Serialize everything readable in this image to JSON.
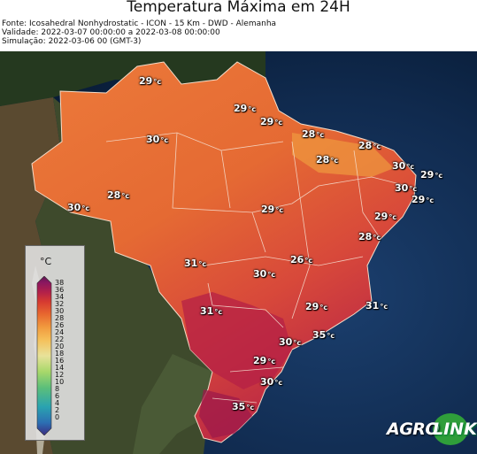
{
  "header": {
    "title": "Temperatura Máxima em 24H",
    "source": "Fonte: Icosahedral Nonhydrostatic - ICON - 15 Km - DWD - Alemanha",
    "validity": "Validade: 2022-03-07 00:00:00 a 2022-03-08 00:00:00",
    "simulation": "Simulação: 2022-03-06 00 (GMT-3)"
  },
  "map": {
    "unit": "°c",
    "labels": [
      {
        "value": "29"
      },
      {
        "value": "29"
      },
      {
        "value": "29"
      },
      {
        "value": "28"
      },
      {
        "value": "30"
      },
      {
        "value": "28"
      },
      {
        "value": "28"
      },
      {
        "value": "30"
      },
      {
        "value": "29"
      },
      {
        "value": "30"
      },
      {
        "value": "29"
      },
      {
        "value": "28"
      },
      {
        "value": "30"
      },
      {
        "value": "29"
      },
      {
        "value": "29"
      },
      {
        "value": "28"
      },
      {
        "value": "31"
      },
      {
        "value": "26"
      },
      {
        "value": "30"
      },
      {
        "value": "31"
      },
      {
        "value": "29"
      },
      {
        "value": "31"
      },
      {
        "value": "35"
      },
      {
        "value": "30"
      },
      {
        "value": "29"
      },
      {
        "value": "30"
      },
      {
        "value": "35"
      }
    ]
  },
  "legend": {
    "unit": "°C",
    "ticks": [
      "38",
      "36",
      "34",
      "32",
      "30",
      "28",
      "26",
      "24",
      "22",
      "20",
      "18",
      "16",
      "14",
      "12",
      "10",
      "8",
      "6",
      "4",
      "2",
      "0"
    ],
    "colors": [
      "#3b2a80",
      "#2c6fb3",
      "#2aa3b0",
      "#5cbf7a",
      "#a8d86a",
      "#e8e29a",
      "#f5c05a",
      "#f19a3e",
      "#e8682f",
      "#d63a30",
      "#b2204a",
      "#8a1760",
      "#5c1652"
    ]
  },
  "logo": {
    "part1": "AGRO",
    "part2": "LINK"
  }
}
